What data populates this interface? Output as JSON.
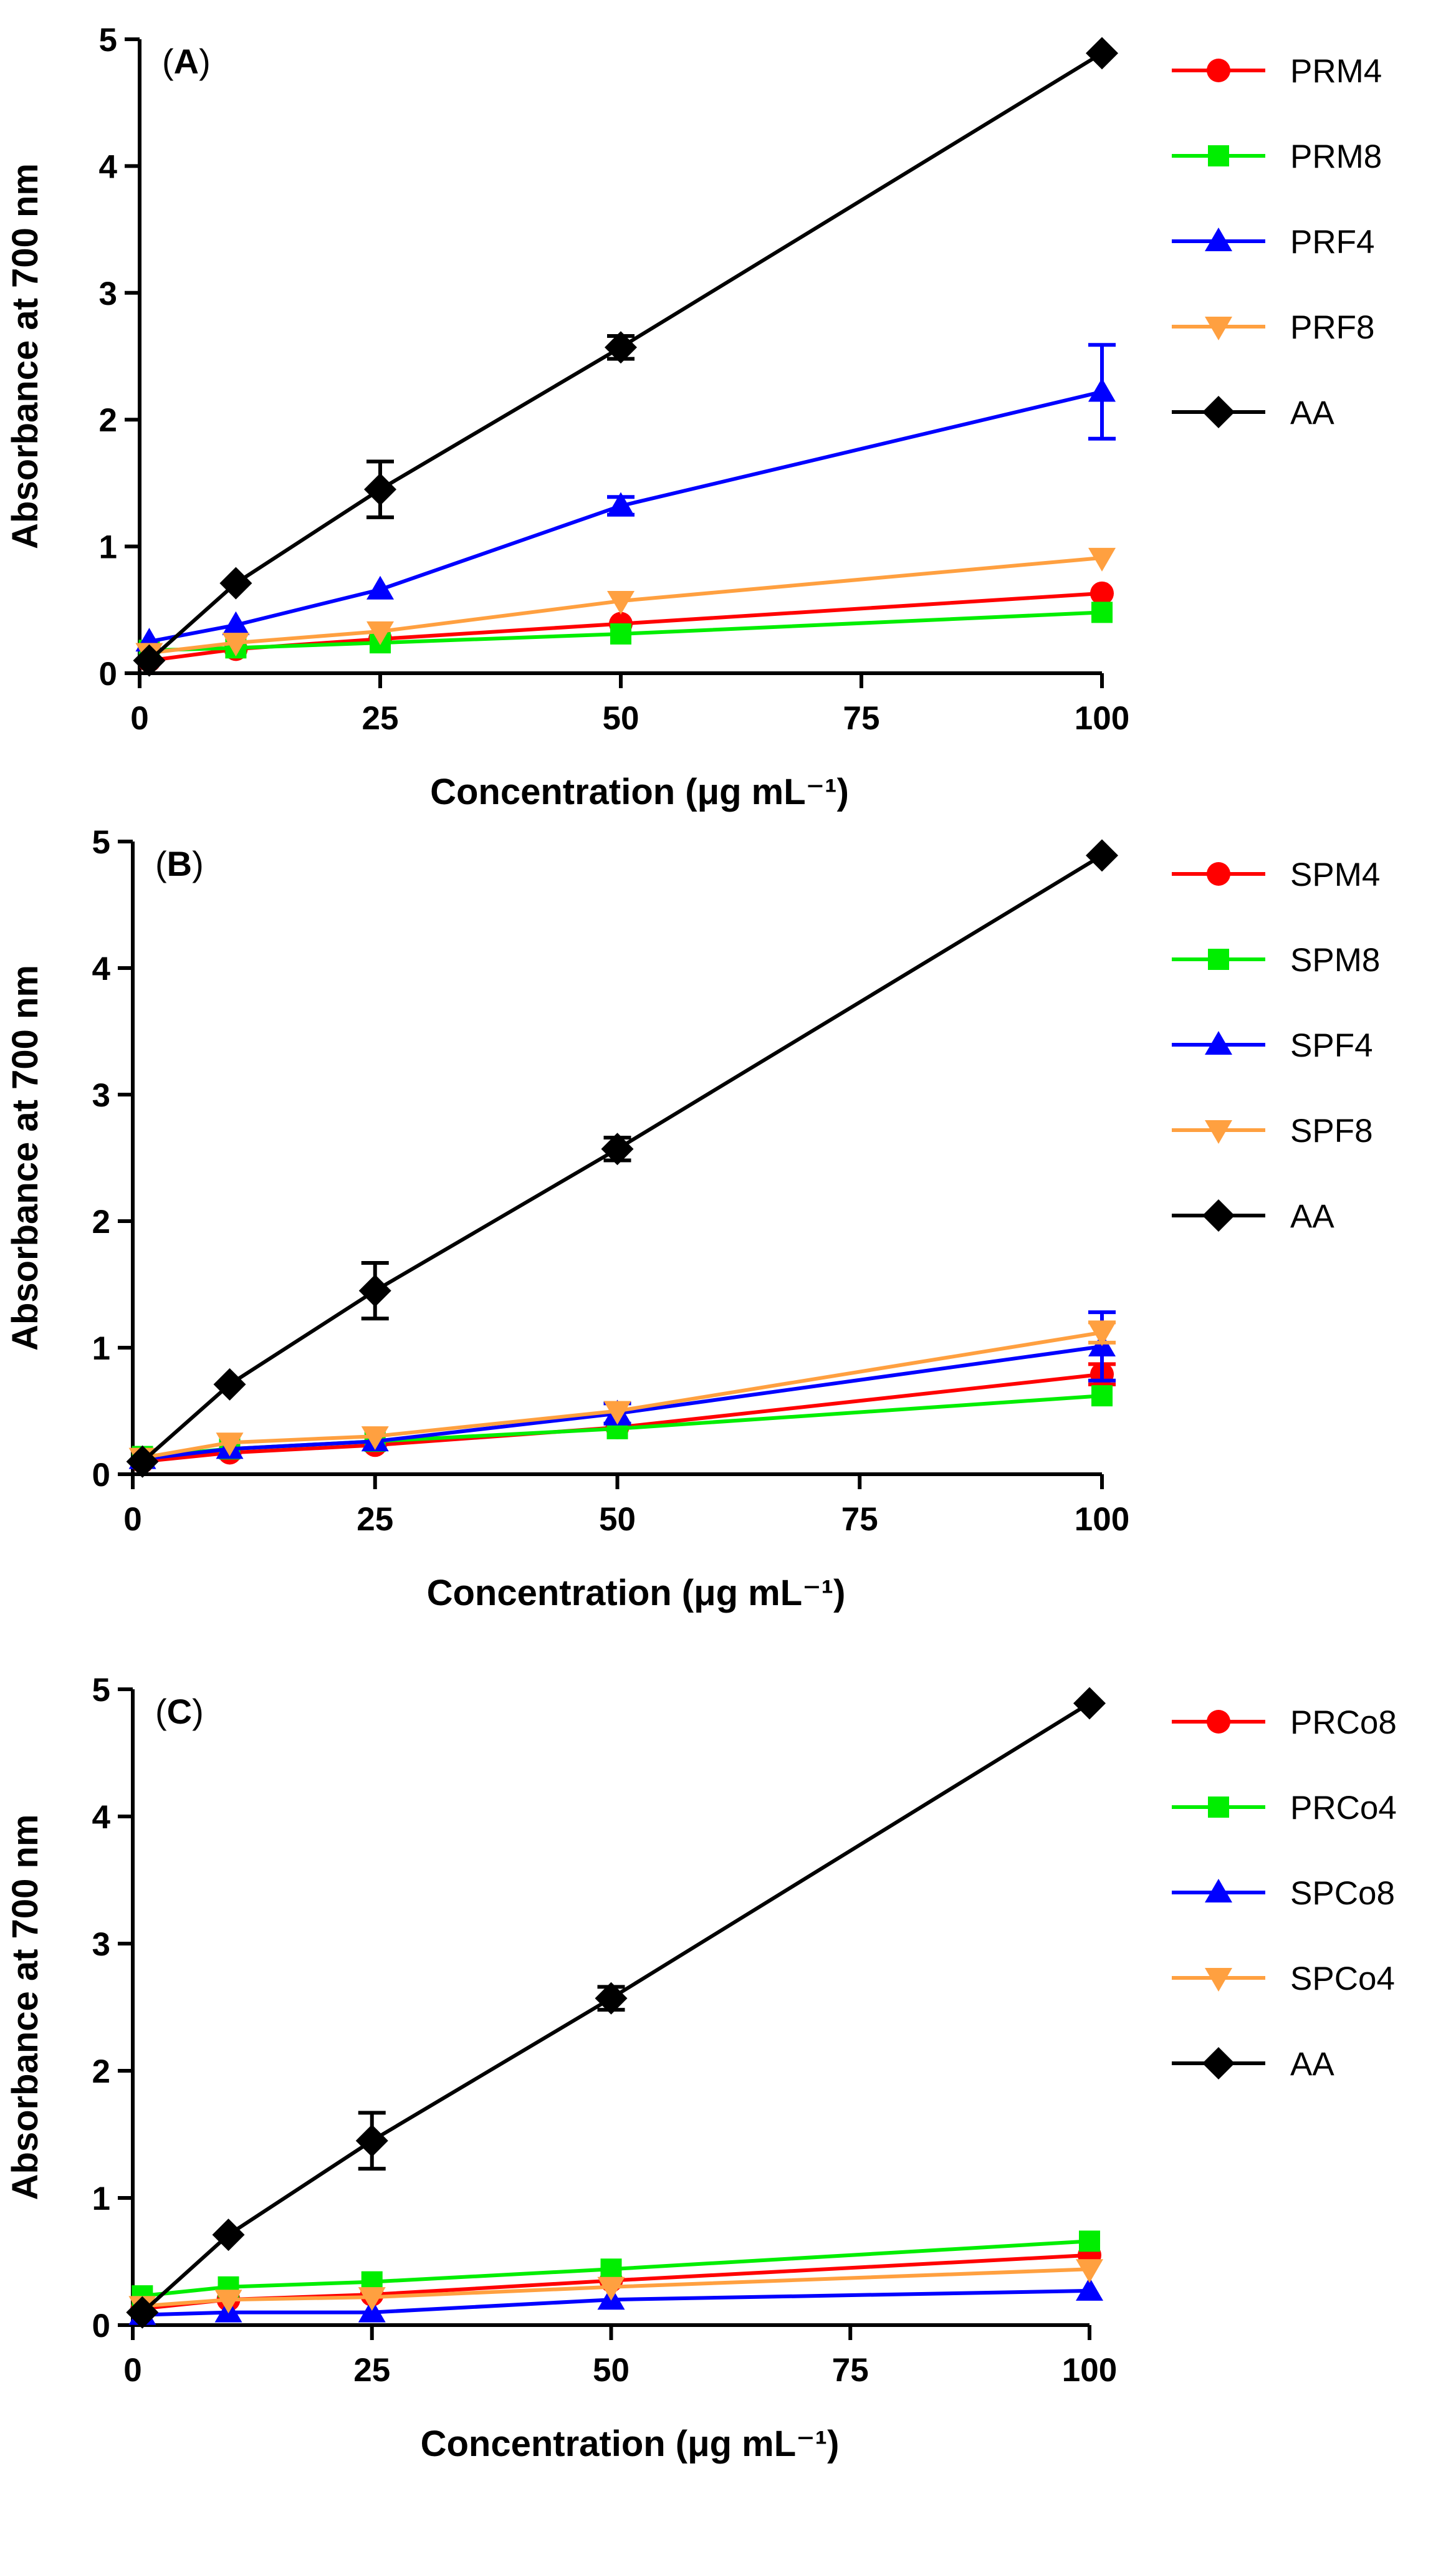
{
  "chart_data": [
    {
      "type": "line",
      "panel_label": "A",
      "xlabel": "Concentration (μg mL⁻¹)",
      "ylabel": "Absorbance at 700 nm",
      "xlim": [
        0,
        100
      ],
      "ylim": [
        0,
        5
      ],
      "x_ticks": [
        "0",
        "25",
        "50",
        "75",
        "100"
      ],
      "y_ticks": [
        "0",
        "1",
        "2",
        "3",
        "4",
        "5"
      ],
      "grid": false,
      "legend_position": "right",
      "x": [
        1,
        10,
        25,
        50,
        100
      ],
      "series": [
        {
          "name": "PRM4",
          "marker": "circle",
          "color": "#ff0000",
          "values": [
            0.1,
            0.19,
            0.27,
            0.39,
            0.63
          ],
          "errors": [
            0,
            0,
            0,
            0,
            0
          ]
        },
        {
          "name": "PRM8",
          "marker": "square",
          "color": "#00ee00",
          "values": [
            0.18,
            0.2,
            0.24,
            0.31,
            0.48
          ],
          "errors": [
            0,
            0,
            0,
            0,
            0
          ]
        },
        {
          "name": "PRF4",
          "marker": "triangle-up",
          "color": "#0000ff",
          "values": [
            0.25,
            0.38,
            0.66,
            1.32,
            2.22
          ],
          "errors": [
            0,
            0,
            0,
            0.07,
            0.37
          ]
        },
        {
          "name": "PRF8",
          "marker": "triangle-down",
          "color": "#ffa040",
          "values": [
            0.16,
            0.24,
            0.33,
            0.57,
            0.91
          ],
          "errors": [
            0,
            0,
            0,
            0,
            0
          ]
        },
        {
          "name": "AA",
          "marker": "diamond",
          "color": "#000000",
          "values": [
            0.1,
            0.71,
            1.45,
            2.57,
            4.89
          ],
          "errors": [
            0,
            0,
            0.22,
            0.09,
            0
          ]
        }
      ]
    },
    {
      "type": "line",
      "panel_label": "B",
      "xlabel": "Concentration (μg mL⁻¹)",
      "ylabel": "Absorbance at 700 nm",
      "xlim": [
        0,
        100
      ],
      "ylim": [
        0,
        5
      ],
      "x_ticks": [
        "0",
        "25",
        "50",
        "75",
        "100"
      ],
      "y_ticks": [
        "0",
        "1",
        "2",
        "3",
        "4",
        "5"
      ],
      "grid": false,
      "legend_position": "right",
      "x": [
        1,
        10,
        25,
        50,
        100
      ],
      "series": [
        {
          "name": "SPM4",
          "marker": "circle",
          "color": "#ff0000",
          "values": [
            0.1,
            0.17,
            0.23,
            0.37,
            0.79
          ],
          "errors": [
            0,
            0,
            0,
            0,
            0.08
          ]
        },
        {
          "name": "SPM8",
          "marker": "square",
          "color": "#00ee00",
          "values": [
            0.14,
            0.2,
            0.26,
            0.36,
            0.62
          ],
          "errors": [
            0,
            0,
            0,
            0,
            0
          ]
        },
        {
          "name": "SPF4",
          "marker": "triangle-up",
          "color": "#0000ff",
          "values": [
            0.12,
            0.2,
            0.26,
            0.48,
            1.01
          ],
          "errors": [
            0,
            0,
            0,
            0.08,
            0.27
          ]
        },
        {
          "name": "SPF8",
          "marker": "triangle-down",
          "color": "#ffa040",
          "values": [
            0.13,
            0.25,
            0.3,
            0.5,
            1.12
          ],
          "errors": [
            0,
            0,
            0,
            0,
            0.08
          ]
        },
        {
          "name": "AA",
          "marker": "diamond",
          "color": "#000000",
          "values": [
            0.1,
            0.71,
            1.45,
            2.57,
            4.89
          ],
          "errors": [
            0,
            0,
            0.22,
            0.09,
            0
          ]
        }
      ]
    },
    {
      "type": "line",
      "panel_label": "C",
      "xlabel": "Concentration (μg mL⁻¹)",
      "ylabel": "Absorbance at 700 nm",
      "xlim": [
        0,
        100
      ],
      "ylim": [
        0,
        5
      ],
      "x_ticks": [
        "0",
        "25",
        "50",
        "75",
        "100"
      ],
      "y_ticks": [
        "0",
        "1",
        "2",
        "3",
        "4",
        "5"
      ],
      "grid": false,
      "legend_position": "right",
      "x": [
        1,
        10,
        25,
        50,
        100
      ],
      "series": [
        {
          "name": "PRCo8",
          "marker": "circle",
          "color": "#ff0000",
          "values": [
            0.13,
            0.2,
            0.24,
            0.35,
            0.55
          ],
          "errors": [
            0,
            0,
            0,
            0,
            0
          ]
        },
        {
          "name": "PRCo4",
          "marker": "square",
          "color": "#00ee00",
          "values": [
            0.23,
            0.3,
            0.34,
            0.44,
            0.66
          ],
          "errors": [
            0,
            0,
            0,
            0,
            0
          ]
        },
        {
          "name": "SPCo8",
          "marker": "triangle-up",
          "color": "#0000ff",
          "values": [
            0.08,
            0.1,
            0.1,
            0.2,
            0.27
          ],
          "errors": [
            0,
            0,
            0,
            0,
            0
          ]
        },
        {
          "name": "SPCo4",
          "marker": "triangle-down",
          "color": "#ffa040",
          "values": [
            0.15,
            0.2,
            0.22,
            0.3,
            0.44
          ],
          "errors": [
            0,
            0,
            0,
            0,
            0
          ]
        },
        {
          "name": "AA",
          "marker": "diamond",
          "color": "#000000",
          "values": [
            0.1,
            0.71,
            1.45,
            2.57,
            4.89
          ],
          "errors": [
            0,
            0,
            0.22,
            0.09,
            0
          ]
        }
      ]
    }
  ]
}
